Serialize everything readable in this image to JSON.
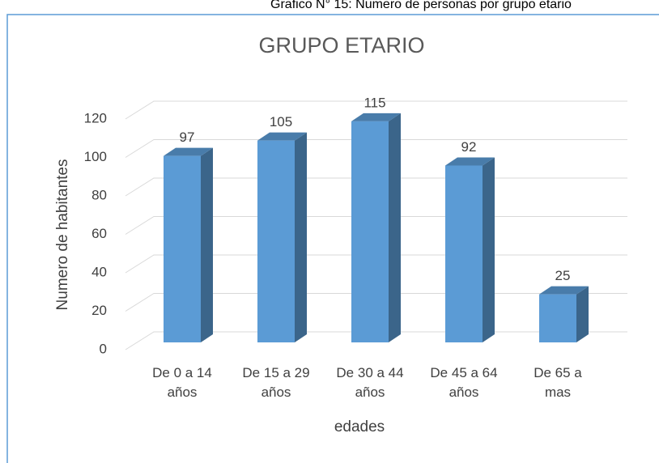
{
  "caption": "Grafico N° 15: Numero de personas por grupo etario",
  "chart_data": {
    "type": "bar3d",
    "title": "GRUPO ETARIO",
    "x_label": "edades",
    "y_label": "Numero de habitantes",
    "categories": [
      "De 0 a 14 años",
      "De 15 a 29 años",
      "De 30 a 44 años",
      "De 45 a 64 años",
      "De 65 a mas"
    ],
    "values": [
      97,
      105,
      115,
      92,
      25
    ],
    "color": "#5b9bd5",
    "ylim": [
      0,
      120
    ],
    "yticks": [
      0,
      20,
      40,
      60,
      80,
      100,
      120
    ],
    "grid": true
  }
}
